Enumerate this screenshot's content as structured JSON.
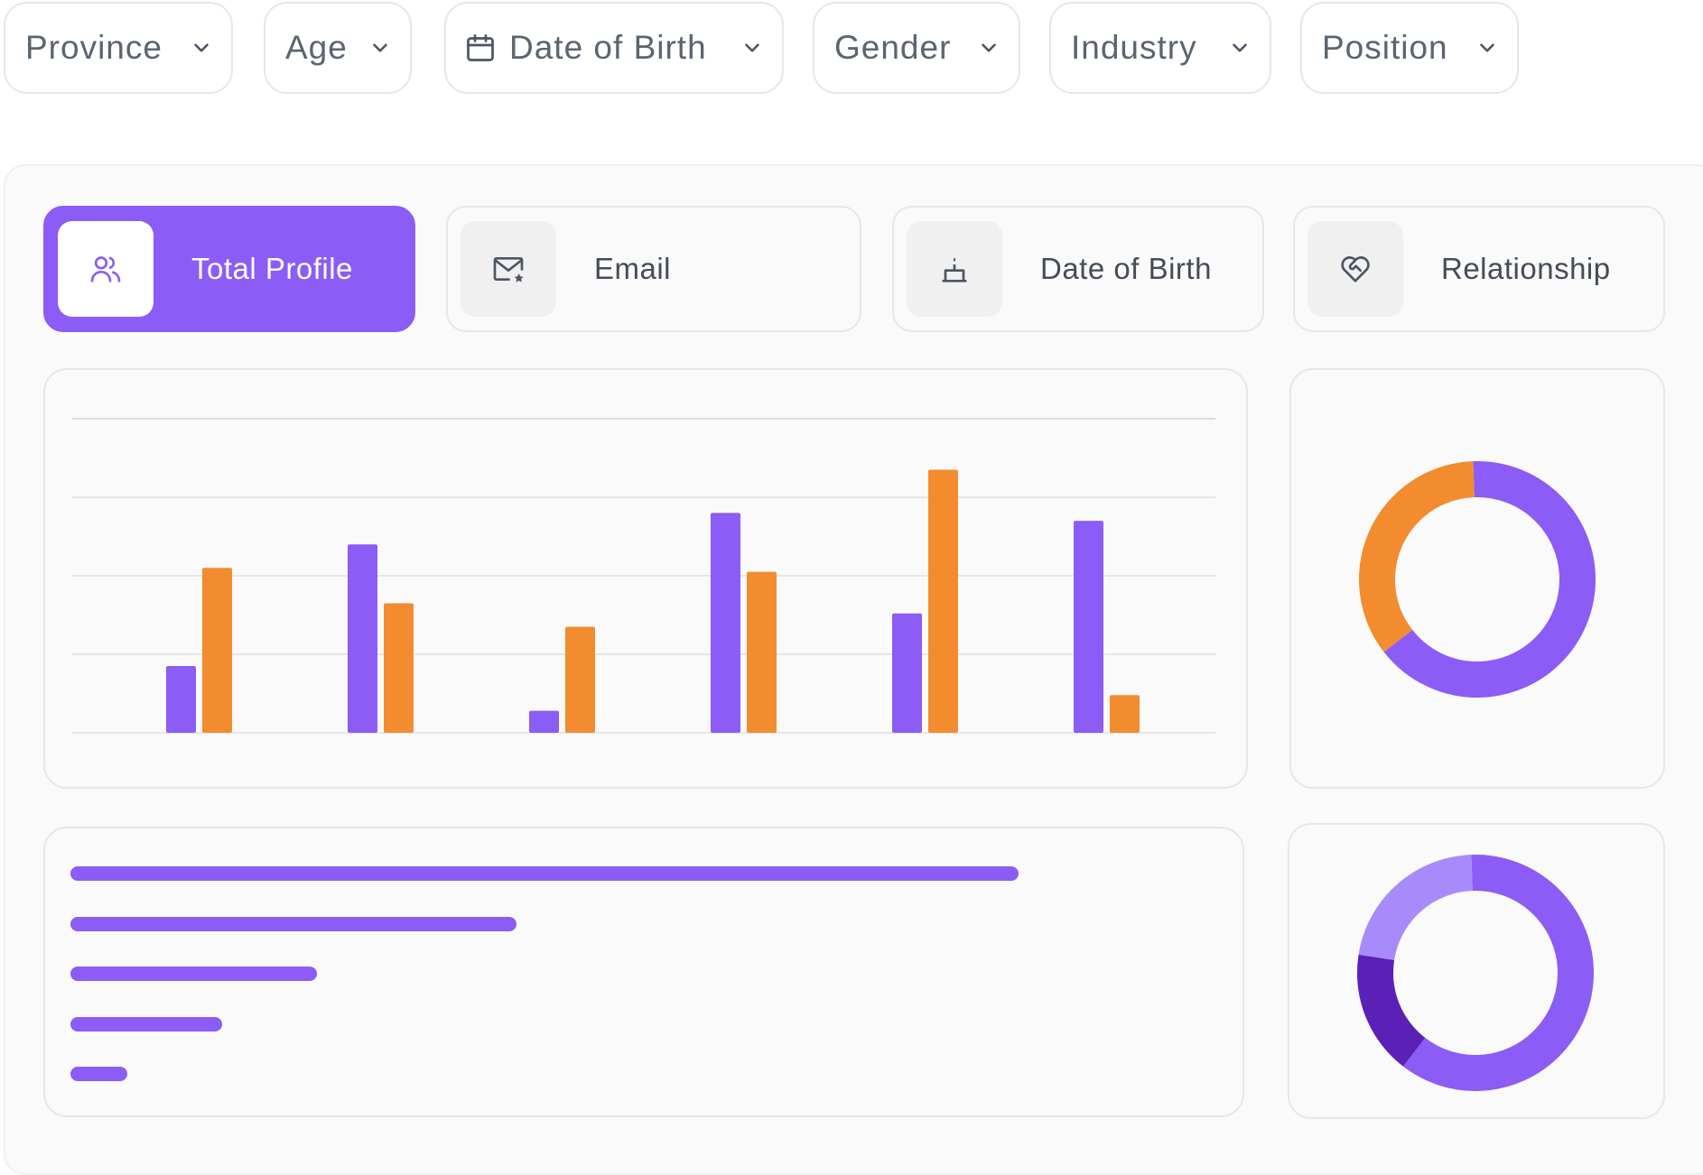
{
  "filters": {
    "province": "Province",
    "age": "Age",
    "date_of_birth": "Date of Birth",
    "gender": "Gender",
    "industry": "Industry",
    "position": "Position"
  },
  "tabs": {
    "total_profile": "Total Profile",
    "email": "Email",
    "date_of_birth": "Date of Birth",
    "relationship": "Relationship"
  },
  "icons": {
    "chevron": "chevron-down-icon",
    "calendar": "calendar-icon",
    "users": "users-icon",
    "email": "email-star-icon",
    "cake": "cake-icon",
    "relationship": "heart-handshake-icon"
  },
  "colors": {
    "primary": "#8b5cf6",
    "secondary": "#f28c2e",
    "light_purple": "#a78bfa",
    "dark_purple": "#5b21b6"
  },
  "chart_data": [
    {
      "type": "bar",
      "categories": [
        "",
        "",
        "",
        "",
        "",
        ""
      ],
      "series": [
        {
          "values": [
            0.85,
            2.4,
            0.28,
            2.8,
            1.52,
            2.7
          ],
          "color": "#8b5cf6"
        },
        {
          "values": [
            2.1,
            1.65,
            1.35,
            2.05,
            3.35,
            0.48
          ],
          "color": "#f28c2e"
        }
      ],
      "ylim": [
        0,
        4
      ],
      "grid": true,
      "title": "",
      "xlabel": "",
      "ylabel": ""
    },
    {
      "type": "pie",
      "donut": true,
      "values": [
        0.65,
        0.35
      ],
      "colors": [
        "#8b5cf6",
        "#f28c2e"
      ]
    },
    {
      "type": "bar",
      "orientation": "horizontal",
      "categories": [
        "",
        "",
        "",
        "",
        ""
      ],
      "values": [
        100,
        47,
        26,
        16,
        6
      ],
      "color": "#8b5cf6"
    },
    {
      "type": "pie",
      "donut": true,
      "values": [
        0.61,
        0.17,
        0.22
      ],
      "colors": [
        "#8b5cf6",
        "#5b21b6",
        "#a78bfa"
      ]
    }
  ]
}
